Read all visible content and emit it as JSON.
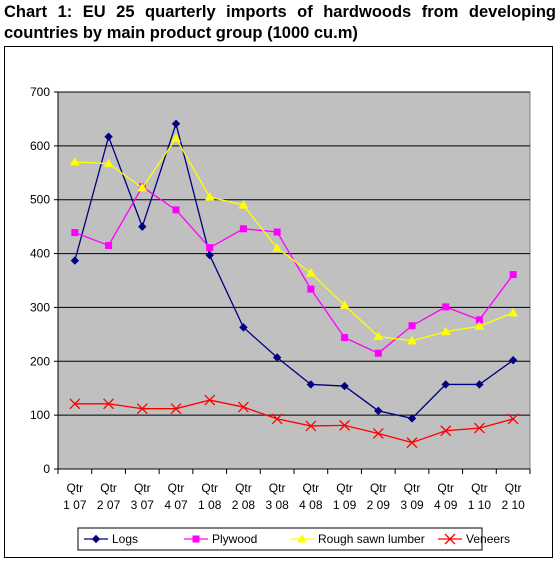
{
  "title": "Chart 1: EU 25 quarterly imports of hardwoods from developing  countries by main product group (1000 cu.m)",
  "chart_data": {
    "type": "line",
    "categories": [
      [
        "Qtr",
        "1 07"
      ],
      [
        "Qtr",
        "2 07"
      ],
      [
        "Qtr",
        "3 07"
      ],
      [
        "Qtr",
        "4 07"
      ],
      [
        "Qtr",
        "1 08"
      ],
      [
        "Qtr",
        "2 08"
      ],
      [
        "Qtr",
        "3 08"
      ],
      [
        "Qtr",
        "4 08"
      ],
      [
        "Qtr",
        "1 09"
      ],
      [
        "Qtr",
        "2 09"
      ],
      [
        "Qtr",
        "3 09"
      ],
      [
        "Qtr",
        "4 09"
      ],
      [
        "Qtr",
        "1 10"
      ],
      [
        "Qtr",
        "2 10"
      ]
    ],
    "ylim": [
      0,
      700
    ],
    "yticks": [
      "0",
      "100",
      "200",
      "300",
      "400",
      "500",
      "600",
      "700"
    ],
    "grid": true,
    "plot_background": "#c0c0c0",
    "legend_position": "bottom",
    "series": [
      {
        "name": "Logs",
        "color": "#000080",
        "marker": "diamond",
        "values": [
          387,
          617,
          450,
          641,
          397,
          263,
          207,
          157,
          154,
          108,
          94,
          157,
          157,
          202
        ]
      },
      {
        "name": "Plywood",
        "color": "#ff00ff",
        "marker": "square",
        "values": [
          439,
          415,
          524,
          481,
          411,
          446,
          440,
          334,
          244,
          215,
          266,
          301,
          277,
          361
        ]
      },
      {
        "name": "Rough sawn lumber",
        "color": "#ffff00",
        "marker": "triangle",
        "values": [
          570,
          567,
          522,
          614,
          505,
          490,
          410,
          364,
          304,
          246,
          238,
          255,
          265,
          290
        ]
      },
      {
        "name": "Veneers",
        "color": "#ff0000",
        "marker": "x",
        "values": [
          121,
          121,
          112,
          112,
          128,
          115,
          93,
          80,
          81,
          66,
          49,
          71,
          76,
          93
        ]
      }
    ]
  }
}
